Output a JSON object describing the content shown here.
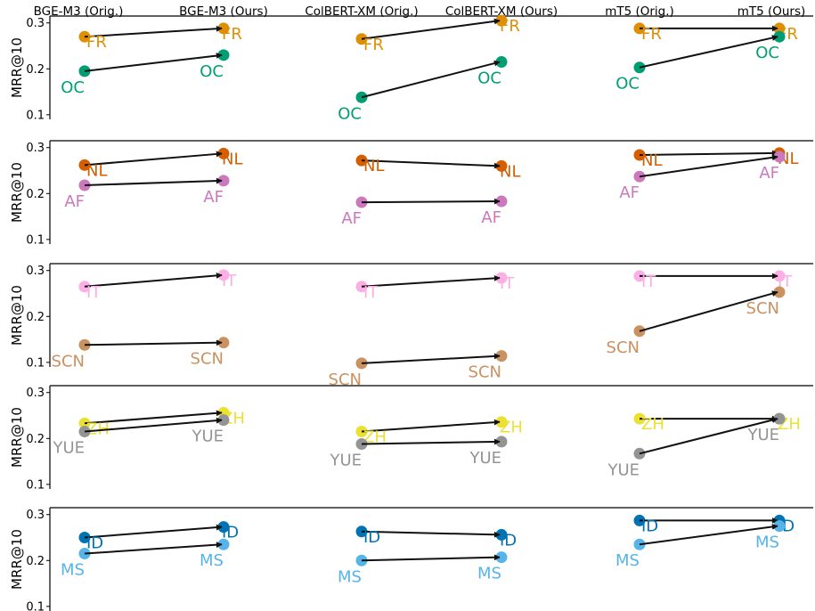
{
  "chart_data": {
    "type": "scatter",
    "column_headers": [
      "BGE-M3 (Orig.)",
      "BGE-M3 (Ours)",
      "ColBERT-XM (Orig.)",
      "ColBERT-XM (Ours)",
      "mT5 (Orig.)",
      "mT5 (Ours)"
    ],
    "models": [
      "BGE-M3",
      "ColBERT-XM",
      "mT5"
    ],
    "ylabel": "MRR@10",
    "ylim": [
      0.09,
      0.315
    ],
    "yticks": [
      "0.1",
      "0.2",
      "0.3"
    ],
    "ytick_values": [
      0.1,
      0.2,
      0.3
    ],
    "panels": [
      {
        "pair": [
          {
            "label": "FR",
            "color": "#de8f05",
            "orig": [
              0.27,
              0.265,
              0.288
            ],
            "ours": [
              0.288,
              0.305,
              0.288
            ]
          },
          {
            "label": "OC",
            "color": "#029e73",
            "orig": [
              0.195,
              0.138,
              0.203
            ],
            "ours": [
              0.23,
              0.215,
              0.27
            ]
          }
        ]
      },
      {
        "pair": [
          {
            "label": "NL",
            "color": "#d55e00",
            "orig": [
              0.262,
              0.272,
              0.284
            ],
            "ours": [
              0.287,
              0.26,
              0.288
            ]
          },
          {
            "label": "AF",
            "color": "#cc78bc",
            "orig": [
              0.218,
              0.181,
              0.237
            ],
            "ours": [
              0.228,
              0.183,
              0.28
            ]
          }
        ]
      },
      {
        "pair": [
          {
            "label": "IT",
            "color": "#fbafe4",
            "orig": [
              0.265,
              0.265,
              0.288
            ],
            "ours": [
              0.29,
              0.284,
              0.288
            ]
          },
          {
            "label": "SCN",
            "color": "#ca9161",
            "orig": [
              0.138,
              0.098,
              0.168
            ],
            "ours": [
              0.143,
              0.114,
              0.253
            ]
          }
        ]
      },
      {
        "pair": [
          {
            "label": "ZH",
            "color": "#ece133",
            "orig": [
              0.233,
              0.215,
              0.243
            ],
            "ours": [
              0.256,
              0.236,
              0.243
            ]
          },
          {
            "label": "YUE",
            "color": "#949494",
            "orig": [
              0.215,
              0.188,
              0.167
            ],
            "ours": [
              0.24,
              0.193,
              0.243
            ]
          }
        ]
      },
      {
        "pair": [
          {
            "label": "ID",
            "color": "#0173b2",
            "orig": [
              0.25,
              0.263,
              0.287
            ],
            "ours": [
              0.273,
              0.256,
              0.287
            ]
          },
          {
            "label": "MS",
            "color": "#56b4e9",
            "orig": [
              0.215,
              0.2,
              0.235
            ],
            "ours": [
              0.235,
              0.207,
              0.275
            ]
          }
        ]
      }
    ]
  }
}
